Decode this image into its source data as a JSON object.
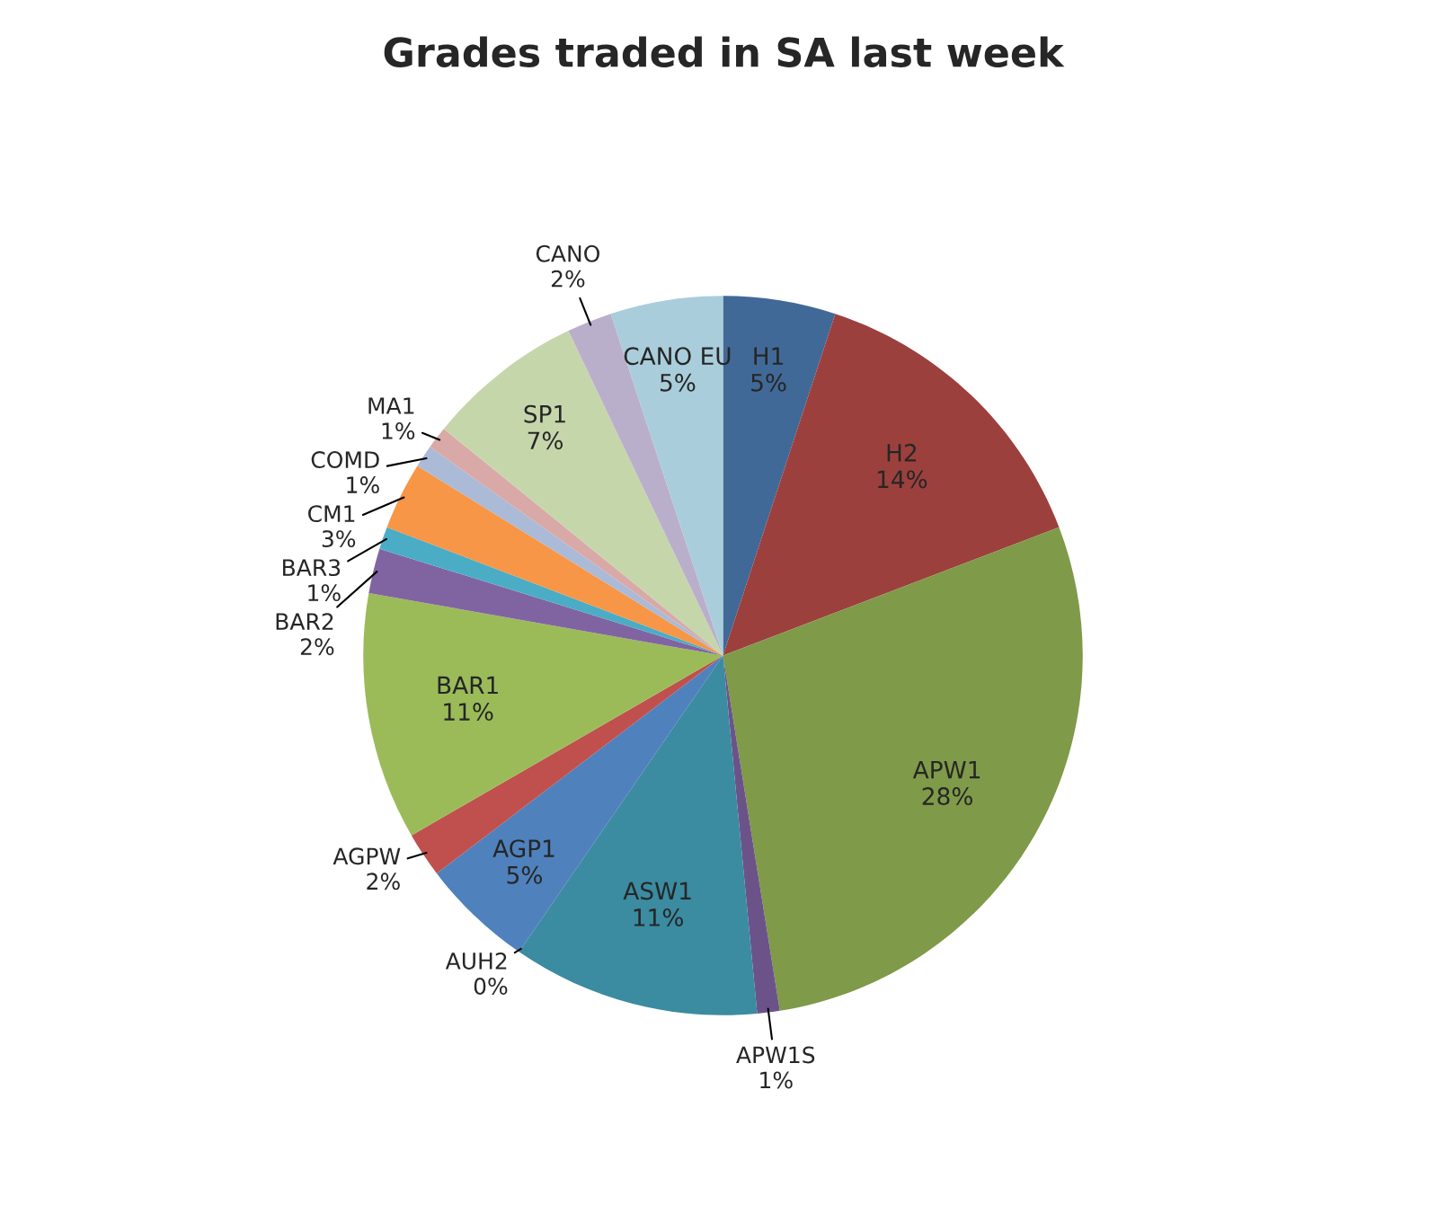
{
  "chart_data": {
    "type": "pie",
    "title": "Grades traded in SA last week",
    "categories": [
      "H1",
      "H2",
      "APW1",
      "APW1S",
      "ASW1",
      "AUH2",
      "AGP1",
      "AGPW",
      "BAR1",
      "BAR2",
      "BAR3",
      "CM1",
      "COMD",
      "MA1",
      "SP1",
      "CANO",
      "CANO EU"
    ],
    "values": [
      5,
      14,
      28,
      1,
      11,
      0,
      5,
      2,
      11,
      2,
      1,
      3,
      1,
      1,
      7,
      2,
      5
    ],
    "value_labels": [
      "5%",
      "14%",
      "28%",
      "1%",
      "11%",
      "0%",
      "5%",
      "2%",
      "11%",
      "2%",
      "1%",
      "3%",
      "1%",
      "1%",
      "7%",
      "2%",
      "5%"
    ],
    "colors": [
      "#416997",
      "#9c403e",
      "#7f9a48",
      "#6b538a",
      "#3b8ba1",
      "#d9803a",
      "#4f81bd",
      "#c0504d",
      "#9bbb59",
      "#8064a2",
      "#4bacc6",
      "#f79646",
      "#aabad7",
      "#d9a9a8",
      "#c6d6ab",
      "#b9afcb",
      "#a9cddb"
    ]
  }
}
